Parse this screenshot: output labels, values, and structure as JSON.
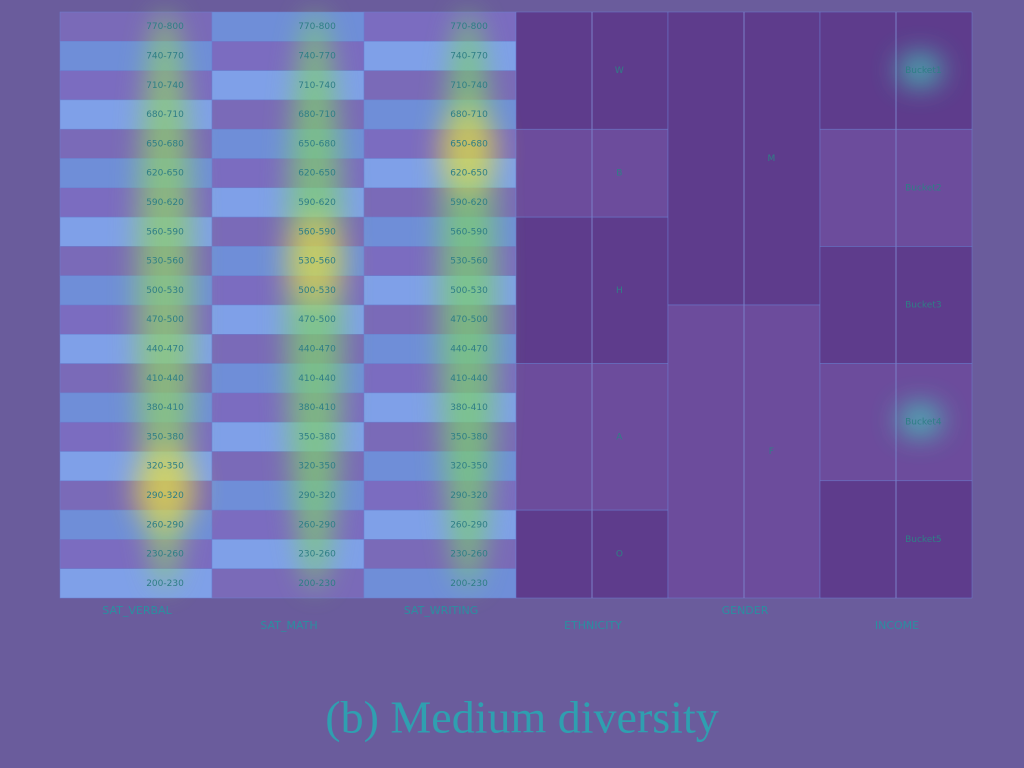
{
  "figure": {
    "columns": [
      {
        "name": "SAT_VERBAL",
        "cells": [
          "770-800",
          "740-770",
          "710-740",
          "680-710",
          "650-680",
          "620-650",
          "590-620",
          "560-590",
          "530-560",
          "500-530",
          "470-500",
          "440-470",
          "410-440",
          "380-410",
          "350-380",
          "320-350",
          "290-320",
          "260-290",
          "230-260",
          "200-230"
        ]
      },
      {
        "name": "SAT_MATH",
        "cells": [
          "770-800",
          "740-770",
          "710-740",
          "680-710",
          "650-680",
          "620-650",
          "590-620",
          "560-590",
          "530-560",
          "500-530",
          "470-500",
          "440-470",
          "410-440",
          "380-410",
          "350-380",
          "320-350",
          "290-320",
          "260-290",
          "230-260",
          "200-230"
        ]
      },
      {
        "name": "SAT_WRITING",
        "cells": [
          "770-800",
          "740-770",
          "710-740",
          "680-710",
          "650-680",
          "620-650",
          "590-620",
          "560-590",
          "530-560",
          "500-530",
          "470-500",
          "440-470",
          "410-440",
          "380-410",
          "350-380",
          "320-350",
          "290-320",
          "260-290",
          "230-260",
          "200-230"
        ]
      },
      {
        "name": "ETHNICITY",
        "groups": [
          {
            "label": "W",
            "rows": [
              0,
              3
            ]
          },
          {
            "label": "B",
            "rows": [
              4,
              6
            ]
          },
          {
            "label": "H",
            "rows": [
              7,
              11
            ]
          },
          {
            "label": "A",
            "rows": [
              12,
              16
            ]
          },
          {
            "label": "O",
            "rows": [
              17,
              19
            ]
          }
        ]
      },
      {
        "name": "GENDER",
        "groups": [
          {
            "label": "M",
            "rows": [
              0,
              9
            ]
          },
          {
            "label": "F",
            "rows": [
              10,
              19
            ]
          }
        ]
      },
      {
        "name": "INCOME",
        "groups": [
          {
            "label": "Bucket1",
            "rows": [
              0,
              3
            ]
          },
          {
            "label": "Bucket2",
            "rows": [
              4,
              7
            ]
          },
          {
            "label": "Bucket3",
            "rows": [
              8,
              11
            ]
          },
          {
            "label": "Bucket4",
            "rows": [
              12,
              15
            ]
          },
          {
            "label": "Bucket5",
            "rows": [
              16,
              19
            ]
          }
        ]
      }
    ],
    "caption": "(b) Medium diversity"
  }
}
